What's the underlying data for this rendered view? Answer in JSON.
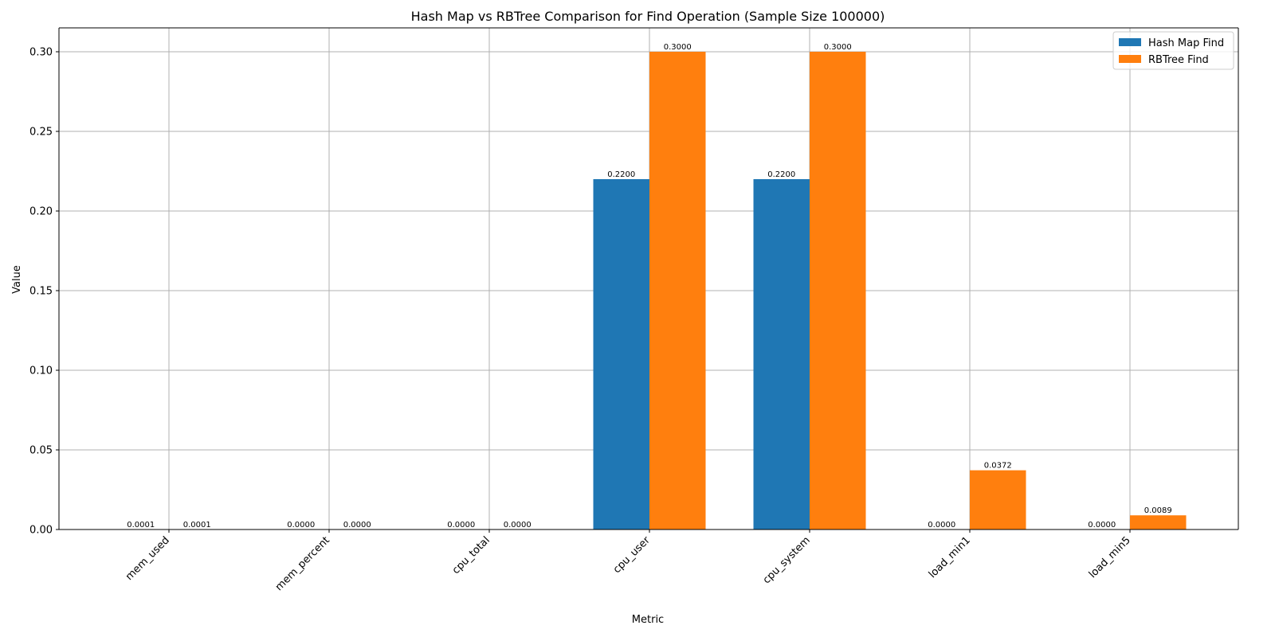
{
  "chart_data": {
    "type": "bar",
    "title": "Hash Map vs RBTree Comparison for Find Operation (Sample Size 100000)",
    "xlabel": "Metric",
    "ylabel": "Value",
    "categories": [
      "mem_used",
      "mem_percent",
      "cpu_total",
      "cpu_user",
      "cpu_system",
      "load_min1",
      "load_min5"
    ],
    "series": [
      {
        "name": "Hash Map Find",
        "color": "#1f77b4",
        "values": [
          0.0001,
          0.0,
          0.0,
          0.22,
          0.22,
          0.0,
          0.0
        ],
        "labels": [
          "0.0001",
          "0.0000",
          "0.0000",
          "0.2200",
          "0.2200",
          "0.0000",
          "0.0000"
        ]
      },
      {
        "name": "RBTree Find",
        "color": "#ff7f0e",
        "values": [
          0.0001,
          0.0,
          0.0,
          0.3,
          0.3,
          0.0372,
          0.0089
        ],
        "labels": [
          "0.0001",
          "0.0000",
          "0.0000",
          "0.3000",
          "0.3000",
          "0.0372",
          "0.0089"
        ]
      }
    ],
    "ylim": [
      0,
      0.315
    ],
    "yticks": [
      0.0,
      0.05,
      0.1,
      0.15,
      0.2,
      0.25,
      0.3
    ],
    "ytick_labels": [
      "0.00",
      "0.05",
      "0.10",
      "0.15",
      "0.20",
      "0.25",
      "0.30"
    ],
    "grid": true,
    "legend_position": "top-right"
  }
}
